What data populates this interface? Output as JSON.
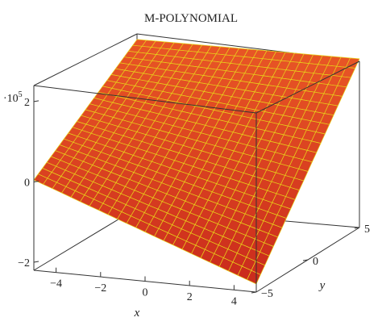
{
  "chart_data": {
    "type": "surface3d",
    "title": "M-POLYNOMIAL",
    "xlabel": "x",
    "ylabel": "y",
    "zlabel": "",
    "z_scale_label": "·10",
    "z_scale_exponent": "5",
    "xlim": [
      -5,
      5
    ],
    "ylim": [
      -5,
      5
    ],
    "zlim": [
      -2.2,
      2.4
    ],
    "x_ticks": [
      -4,
      -2,
      0,
      2,
      4
    ],
    "y_ticks": [
      -5,
      0,
      5
    ],
    "z_ticks": [
      -2,
      0,
      2
    ],
    "grid_n": 24,
    "corner_values": {
      "x_-5_y_-5": 0.05,
      "x_-5_y_5": 2.0,
      "x_5_y_-5": -2.0,
      "x_5_y_5": 2.0
    },
    "surface_color": "#e0301c",
    "mesh_color": "#e8d21a"
  }
}
